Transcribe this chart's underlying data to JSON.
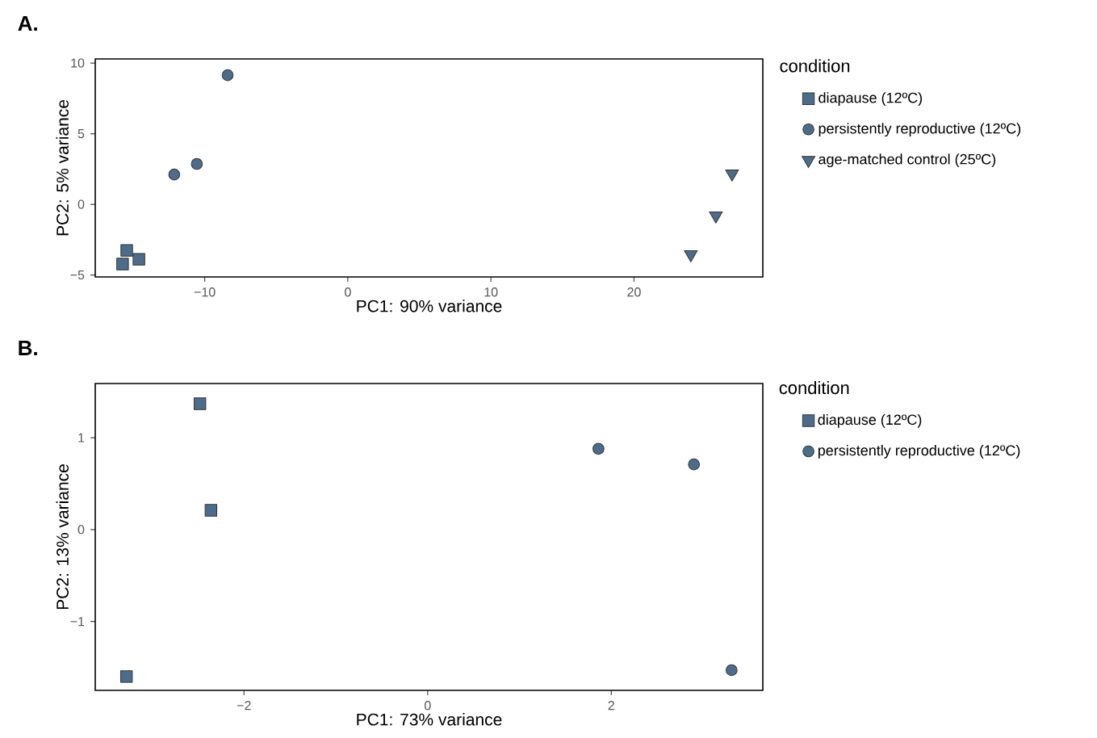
{
  "chart_data": [
    {
      "type": "scatter",
      "title": "A.",
      "xlabel": "PC1: 90% variance",
      "ylabel": "PC2: 5% variance",
      "legend_title": "condition",
      "legend": "right",
      "grid": false,
      "xlim": [
        -17.65,
        29.0
      ],
      "ylim": [
        -5.14,
        10.29
      ],
      "xticks": [
        {
          "value": -10,
          "label": "−10"
        },
        0,
        10,
        20
      ],
      "yticks": [
        {
          "value": -5,
          "label": "−5"
        },
        0,
        5,
        10
      ],
      "series": [
        {
          "name": "diapause (12ºC)",
          "color": "#4b6d8b",
          "marker": "square",
          "x": [
            -15.45,
            -14.6,
            -15.74
          ],
          "values": [
            -3.26,
            -3.89,
            -4.23
          ]
        },
        {
          "name": "persistently reproductive (12ºC)",
          "color": "#4b6d8b",
          "marker": "circle",
          "x": [
            -8.4,
            -10.55,
            -12.13
          ],
          "values": [
            9.14,
            2.86,
            2.11
          ]
        },
        {
          "name": "age-matched control (25ºC)",
          "color": "#4b6d8b",
          "marker": "triangle",
          "x": [
            26.85,
            25.72,
            23.97
          ],
          "values": [
            2.17,
            -0.8,
            -3.54
          ]
        }
      ]
    },
    {
      "type": "scatter",
      "title": "B.",
      "xlabel": "PC1: 73% variance",
      "ylabel": "PC2: 13% variance",
      "legend_title": "condition",
      "legend": "right",
      "grid": false,
      "xlim": [
        -3.62,
        3.65
      ],
      "ylim": [
        -1.75,
        1.59
      ],
      "xticks": [
        {
          "value": -2,
          "label": "−2"
        },
        0,
        2
      ],
      "yticks": [
        {
          "value": -1,
          "label": "−1"
        },
        0,
        1
      ],
      "series": [
        {
          "name": "diapause (12ºC)",
          "color": "#4b6d8b",
          "marker": "square",
          "x": [
            -2.48,
            -2.36,
            -3.28
          ],
          "values": [
            1.37,
            0.21,
            -1.6
          ]
        },
        {
          "name": "persistently reproductive (12ºC)",
          "color": "#4b6d8b",
          "marker": "circle",
          "x": [
            1.86,
            2.9,
            3.31
          ],
          "values": [
            0.88,
            0.71,
            -1.53
          ]
        }
      ]
    }
  ]
}
